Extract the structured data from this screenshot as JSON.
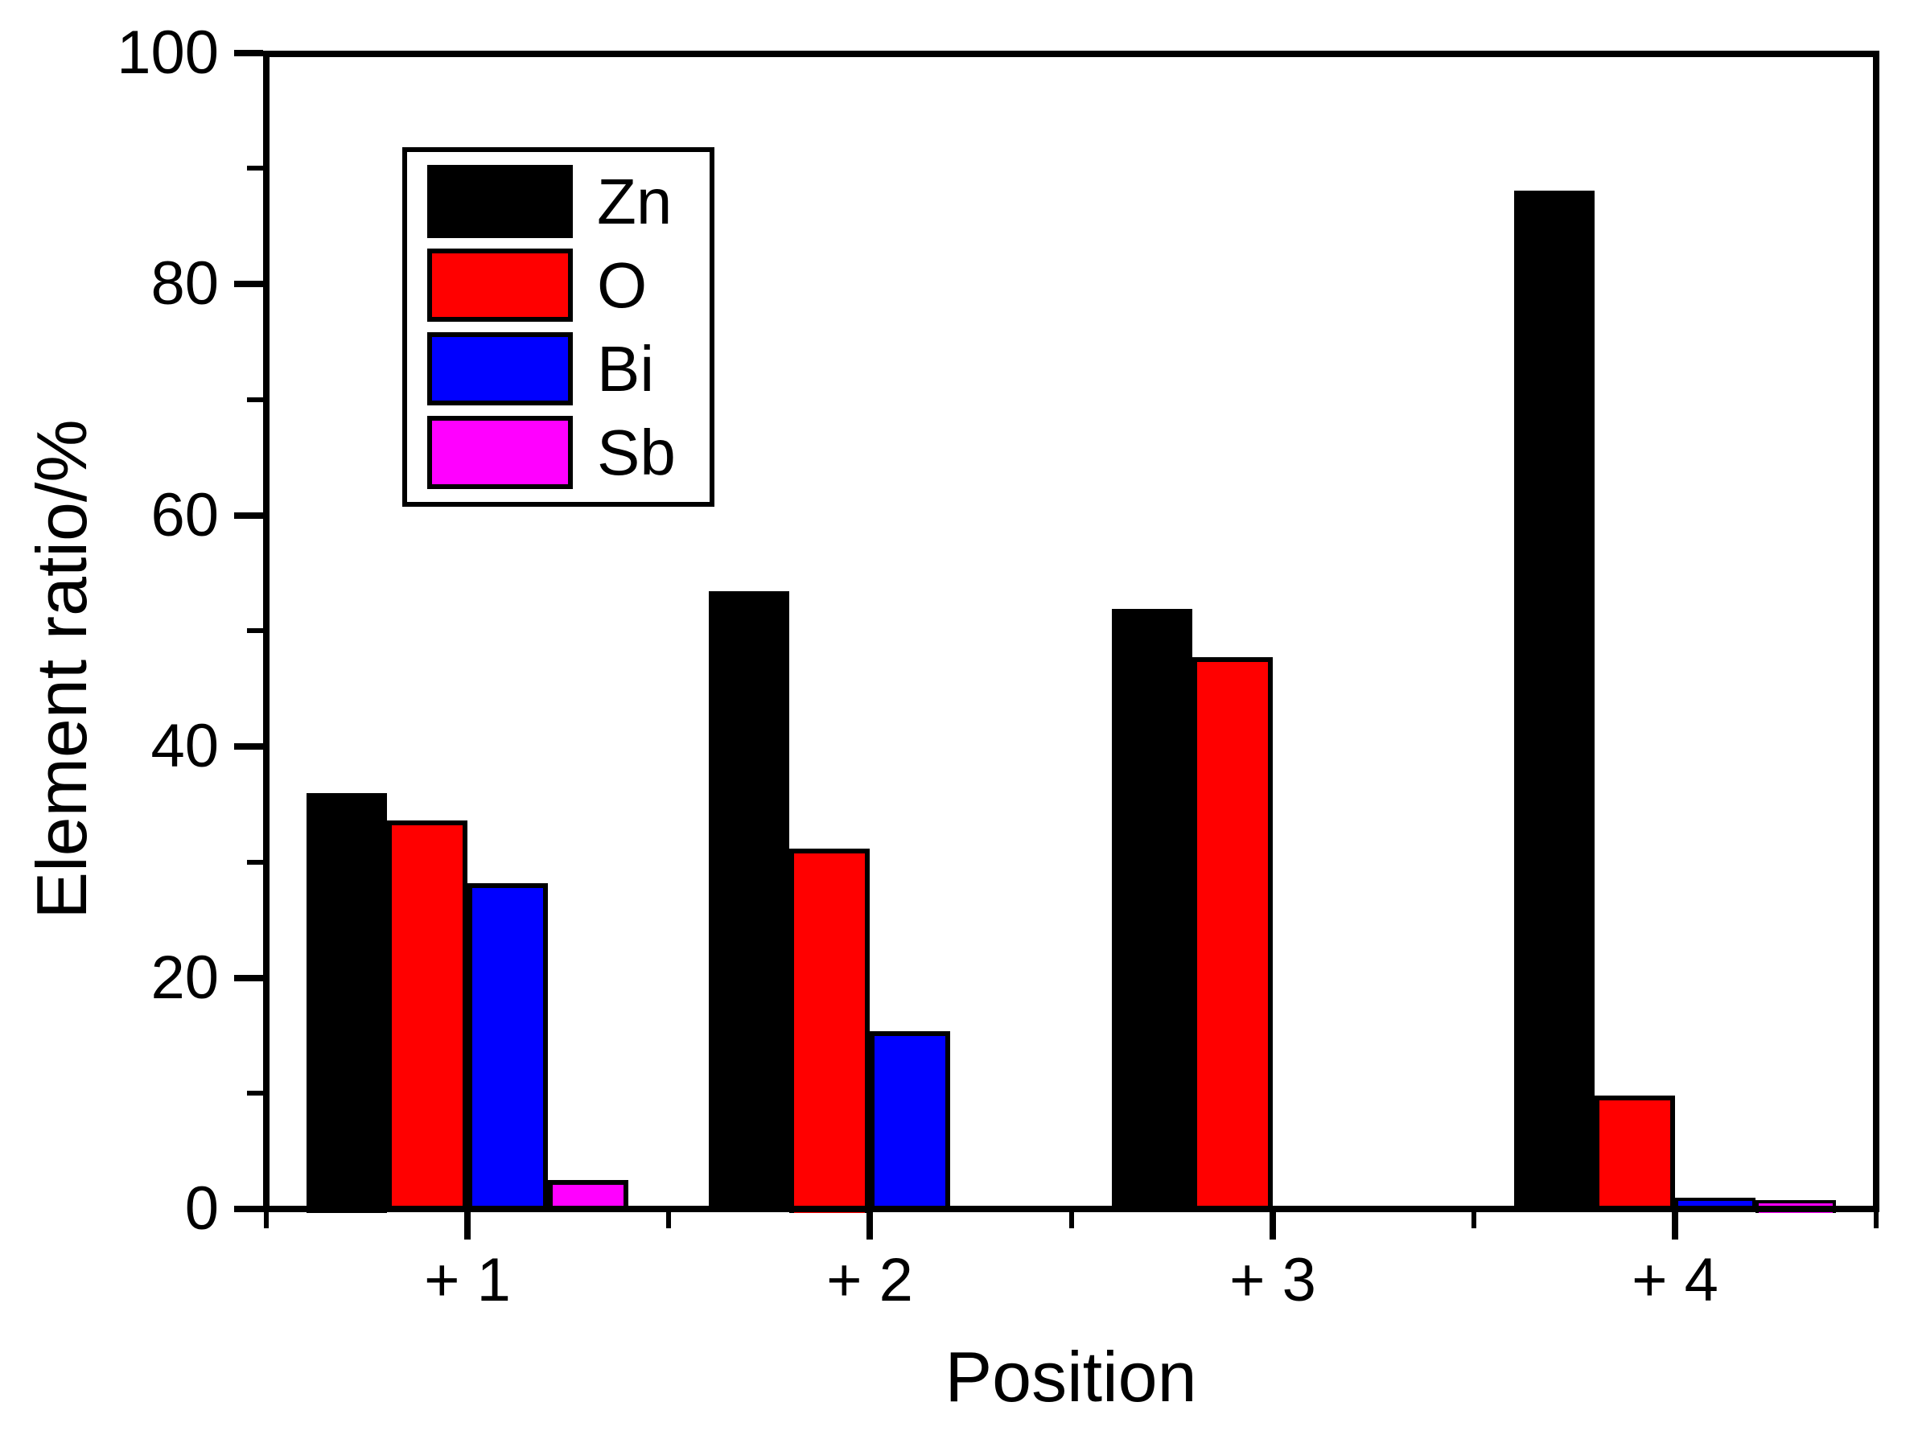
{
  "chart_data": {
    "type": "bar",
    "title": "",
    "xlabel": "Position",
    "ylabel": "Element ratio/%",
    "categories": [
      "+ 1",
      "+ 2",
      "+ 3",
      "+ 4"
    ],
    "series": [
      {
        "name": "Zn",
        "color": "#000000",
        "values": [
          36.0,
          53.4,
          51.9,
          88.1
        ]
      },
      {
        "name": "O",
        "color": "#ff0000",
        "values": [
          33.6,
          31.2,
          47.7,
          9.8
        ]
      },
      {
        "name": "Bi",
        "color": "#0000ff",
        "values": [
          28.2,
          15.4,
          0.3,
          1.0
        ]
      },
      {
        "name": "Sb",
        "color": "#ff00ff",
        "values": [
          2.5,
          0.0,
          0.0,
          0.8
        ]
      }
    ],
    "ylim": [
      0,
      100
    ],
    "yticks_major": [
      0,
      20,
      40,
      60,
      80,
      100
    ],
    "ytick_minor_step": 10,
    "grid": false,
    "legend_position": "upper-left-inside",
    "bar_outline_color": "#000000",
    "axis_color": "#000000",
    "background_color": "#ffffff"
  }
}
